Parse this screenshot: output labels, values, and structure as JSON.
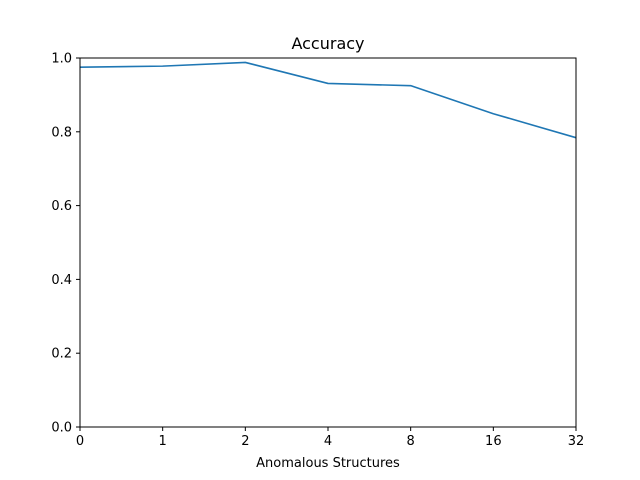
{
  "chart_data": {
    "type": "line",
    "title": "Accuracy",
    "xlabel": "Anomalous Structures",
    "ylabel": "",
    "categories": [
      "0",
      "1",
      "2",
      "4",
      "8",
      "16",
      "32"
    ],
    "series": [
      {
        "values": [
          0.975,
          0.978,
          0.988,
          0.931,
          0.925,
          0.849,
          0.784
        ],
        "color": "#1f77b4"
      }
    ],
    "ylim": [
      0,
      1.0
    ],
    "yticks": [
      "0.0",
      "0.2",
      "0.4",
      "0.6",
      "0.8",
      "1.0"
    ],
    "grid": false,
    "legend": "none"
  }
}
